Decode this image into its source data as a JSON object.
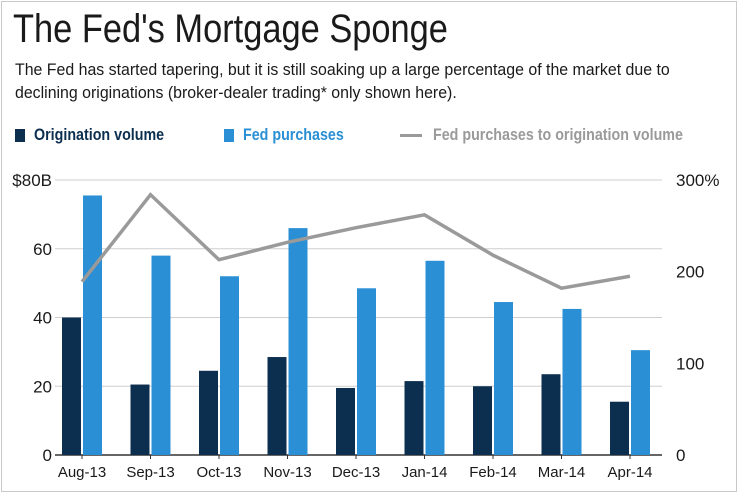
{
  "colors": {
    "origination": "#0d2f4f",
    "fed": "#2a8fd4",
    "ratio": "#9a9a9a",
    "grid": "#cfcfcf",
    "text": "#1a1a1a"
  },
  "chart_data": {
    "type": "bar",
    "title": "The Fed's Mortgage Sponge",
    "subtitle": "The Fed has started tapering, but it is still soaking up a large percentage of the market due to declining originations (broker-dealer trading* only shown here).",
    "categories": [
      "Aug-13",
      "Sep-13",
      "Oct-13",
      "Nov-13",
      "Dec-13",
      "Jan-14",
      "Feb-14",
      "Mar-14",
      "Apr-14"
    ],
    "series": [
      {
        "name": "Origination volume",
        "type": "bar",
        "axis": "left",
        "values": [
          40,
          20.5,
          24.5,
          28.5,
          19.5,
          21.5,
          20,
          23.5,
          15.5
        ]
      },
      {
        "name": "Fed purchases",
        "type": "bar",
        "axis": "left",
        "values": [
          75.5,
          58,
          52,
          66,
          48.5,
          56.5,
          44.5,
          42.5,
          30.5
        ]
      },
      {
        "name": "Fed purchases to origination volume",
        "type": "line",
        "axis": "right",
        "values": [
          189,
          284,
          213,
          232,
          248,
          262,
          218,
          182,
          195
        ]
      }
    ],
    "left_axis": {
      "ylim": [
        0,
        80
      ],
      "ticks": [
        0,
        20,
        40,
        60,
        80
      ],
      "tick_labels": [
        "0",
        "20",
        "40",
        "60",
        "$80B"
      ]
    },
    "right_axis": {
      "ylim": [
        0,
        300
      ],
      "ticks": [
        0,
        100,
        200,
        300
      ],
      "tick_labels": [
        "0",
        "100",
        "200",
        "300%"
      ]
    },
    "grid": true,
    "legend": "top"
  }
}
